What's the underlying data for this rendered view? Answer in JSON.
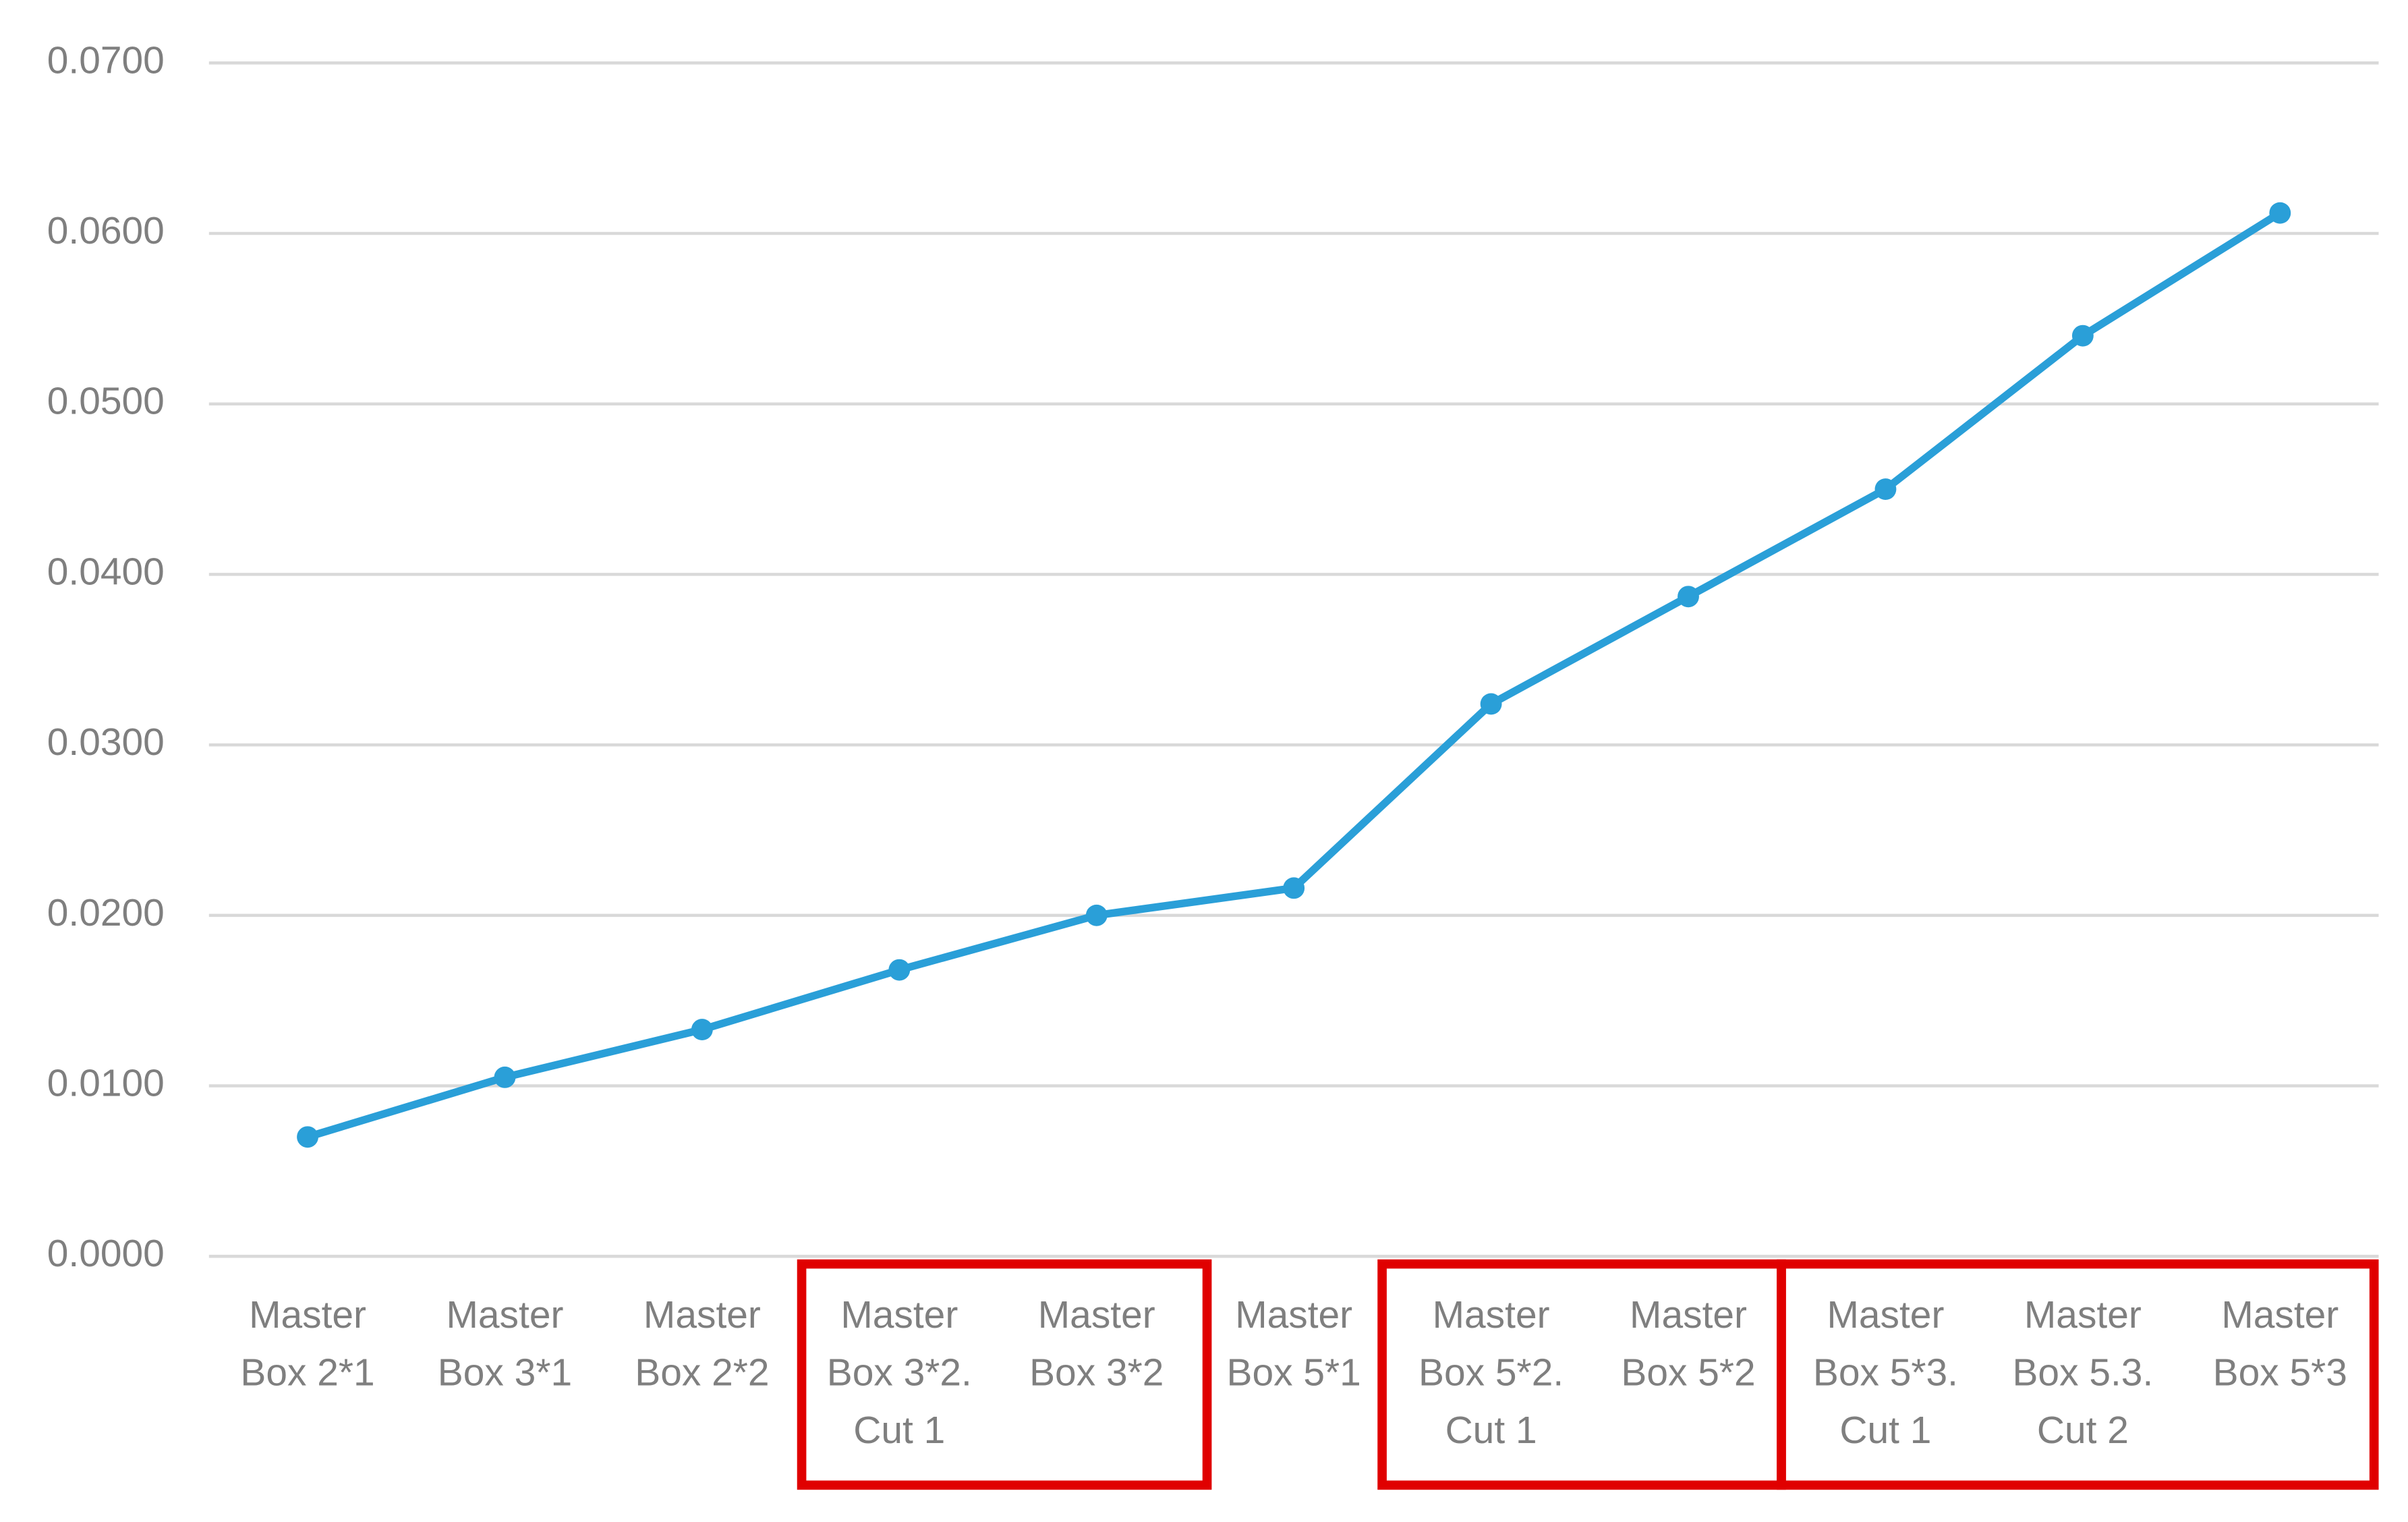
{
  "chart_data": {
    "type": "line",
    "categories": [
      [
        "Master",
        "Box 2*1"
      ],
      [
        "Master",
        "Box 3*1"
      ],
      [
        "Master",
        "Box 2*2"
      ],
      [
        "Master",
        "Box 3*2.",
        "Cut 1"
      ],
      [
        "Master",
        "Box 3*2"
      ],
      [
        "Master",
        "Box 5*1"
      ],
      [
        "Master",
        "Box 5*2.",
        "Cut 1"
      ],
      [
        "Master",
        "Box 5*2"
      ],
      [
        "Master",
        "Box 5*3.",
        "Cut 1"
      ],
      [
        "Master",
        "Box 5.3.",
        "Cut 2"
      ],
      [
        "Master",
        "Box 5*3"
      ]
    ],
    "series": [
      {
        "color": "#2a9fd8",
        "values": [
          0.007,
          0.0105,
          0.0133,
          0.0168,
          0.02,
          0.0216,
          0.0324,
          0.0387,
          0.045,
          0.054,
          0.0612
        ]
      }
    ],
    "ylim": [
      0,
      0.07
    ],
    "yticks": [
      {
        "value": 0,
        "label": "0.0000"
      },
      {
        "value": 0.01,
        "label": "0.0100"
      },
      {
        "value": 0.02,
        "label": "0.0200"
      },
      {
        "value": 0.03,
        "label": "0.0300"
      },
      {
        "value": 0.04,
        "label": "0.0400"
      },
      {
        "value": 0.05,
        "label": "0.0500"
      },
      {
        "value": 0.06,
        "label": "0.0600"
      },
      {
        "value": 0.07,
        "label": "0.0700"
      }
    ],
    "grid": true
  }
}
